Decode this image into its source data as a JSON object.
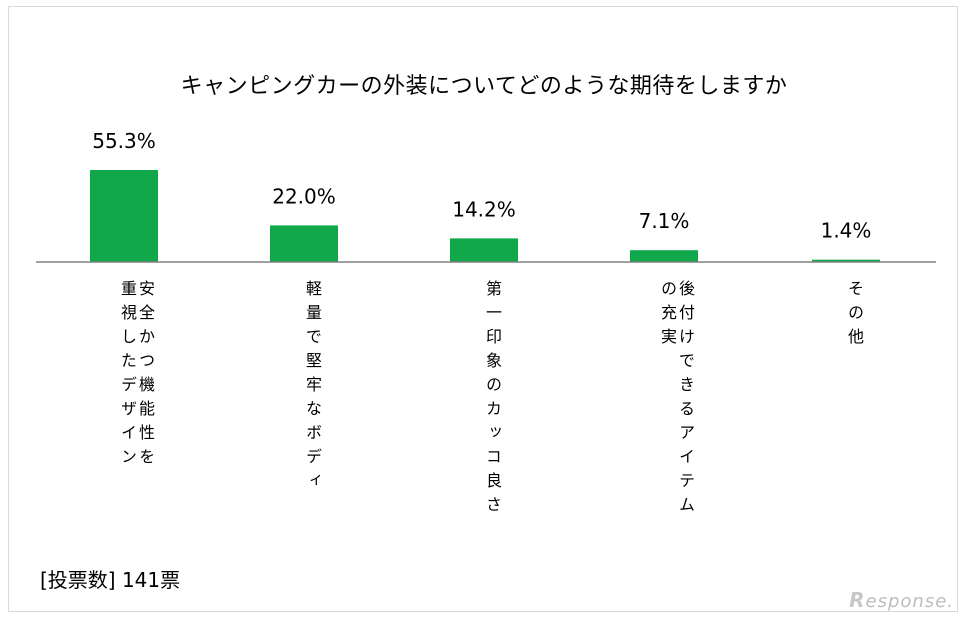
{
  "chart_data": {
    "type": "bar",
    "title": "キャンピングカーの外装についてどのような期待をしますか",
    "categories": [
      "安全かつ機能性を重視したデザイン",
      "軽量で堅牢なボディ",
      "第一印象のカッコ良さ",
      "後付けできるアイテムの充実",
      "その他"
    ],
    "label_lines": [
      [
        "安全かつ機能性を",
        "重視したデザイン"
      ],
      [
        "軽量で堅牢なボディ"
      ],
      [
        "第一印象のカッコ良さ"
      ],
      [
        "後付けできるアイテム",
        "の充実"
      ],
      [
        "その他"
      ]
    ],
    "values": [
      55.3,
      22.0,
      14.2,
      7.1,
      1.4
    ],
    "value_labels": [
      "55.3%",
      "22.0%",
      "14.2%",
      "7.1%",
      "1.4%"
    ],
    "ylim": [
      0,
      60
    ],
    "grid": false,
    "bar_color": "#10a84b"
  },
  "footer": {
    "votes": "[投票数] 141票"
  },
  "brand": {
    "mark": "R",
    "text": "esponse."
  }
}
